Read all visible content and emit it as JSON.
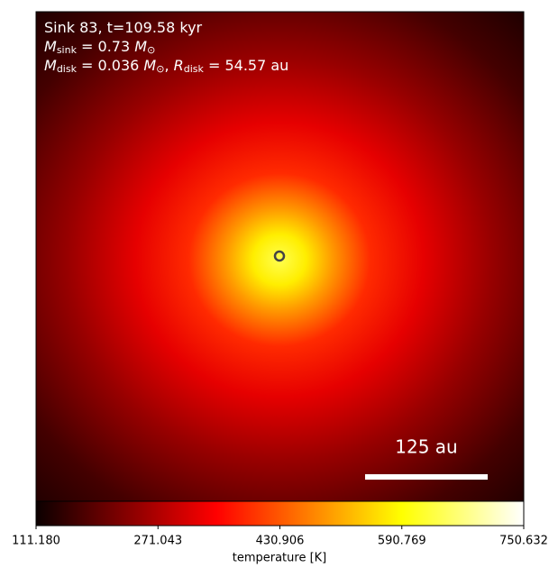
{
  "chart_data": {
    "type": "heatmap",
    "annotations": [
      [
        {
          "text": "Sink 83, t=109.58 kyr"
        }
      ],
      [
        {
          "text": "M",
          "italic": true
        },
        {
          "text": "sink",
          "sub": true
        },
        {
          "text": " = 0.73 "
        },
        {
          "text": "M",
          "italic": true
        },
        {
          "text": "⊙",
          "sub": true
        }
      ],
      [
        {
          "text": "M",
          "italic": true
        },
        {
          "text": "disk",
          "sub": true
        },
        {
          "text": " = 0.036 "
        },
        {
          "text": "M",
          "italic": true
        },
        {
          "text": "⊙",
          "sub": true
        },
        {
          "text": ", "
        },
        {
          "text": "R",
          "italic": true
        },
        {
          "text": "disk",
          "sub": true
        },
        {
          "text": " = 54.57 au"
        }
      ]
    ],
    "scale_bar_label": "125 au",
    "colormap": "hot",
    "colorbar_label": "temperature [K]",
    "clim": [
      111.18,
      750.632
    ],
    "cticks": [
      {
        "value": 111.18,
        "label": "111.180"
      },
      271.043,
      430.906,
      590.769,
      750.632
    ]
  }
}
